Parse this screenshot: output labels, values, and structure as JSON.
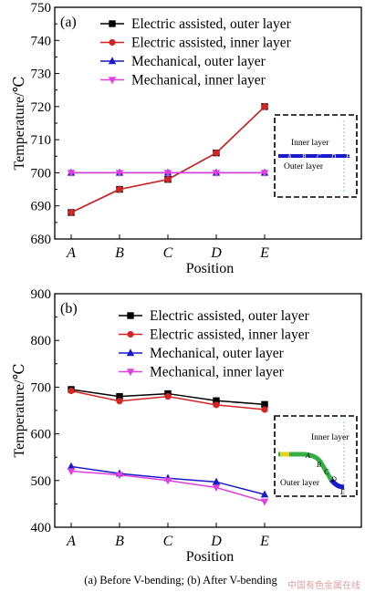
{
  "chart_data": [
    {
      "type": "line",
      "panel_label": "(a)",
      "categories": [
        "A",
        "B",
        "C",
        "D",
        "E"
      ],
      "xlabel": "Position",
      "ylabel": "Temperature/℃",
      "ylim": [
        680,
        750
      ],
      "yticks": [
        680,
        690,
        700,
        710,
        720,
        730,
        740,
        750
      ],
      "legend_position": "top-right",
      "series": [
        {
          "name": "Electric assisted, outer layer",
          "values": [
            688,
            695,
            698,
            706,
            720
          ],
          "color": "#000000",
          "marker": "square"
        },
        {
          "name": "Electric assisted, inner layer",
          "values": [
            688,
            695,
            698,
            706,
            720
          ],
          "color": "#d42424",
          "marker": "circle"
        },
        {
          "name": "Mechanical, outer layer",
          "values": [
            700,
            700,
            700,
            700,
            700
          ],
          "color": "#1a1acc",
          "marker": "triangle-up"
        },
        {
          "name": "Mechanical, inner layer",
          "values": [
            700,
            700,
            700,
            700,
            700
          ],
          "color": "#e040e0",
          "marker": "triangle-down"
        }
      ],
      "inset": {
        "inner_label": "Inner layer",
        "outer_label": "Outer layer",
        "points": [
          "A",
          "B",
          "C",
          "D",
          "E"
        ]
      }
    },
    {
      "type": "line",
      "panel_label": "(b)",
      "categories": [
        "A",
        "B",
        "C",
        "D",
        "E"
      ],
      "xlabel": "Position",
      "ylabel": "Temperature/℃",
      "ylim": [
        400,
        900
      ],
      "yticks": [
        400,
        500,
        600,
        700,
        800,
        900
      ],
      "legend_position": "top-right",
      "series": [
        {
          "name": "Electric assisted, outer layer",
          "values": [
            695,
            680,
            686,
            671,
            663
          ],
          "color": "#000000",
          "marker": "square"
        },
        {
          "name": "Electric assisted, inner layer",
          "values": [
            692,
            670,
            680,
            662,
            652
          ],
          "color": "#d42424",
          "marker": "circle"
        },
        {
          "name": "Mechanical, outer layer",
          "values": [
            530,
            515,
            505,
            497,
            470
          ],
          "color": "#1a1acc",
          "marker": "triangle-up"
        },
        {
          "name": "Mechanical, inner layer",
          "values": [
            520,
            512,
            500,
            485,
            455
          ],
          "color": "#e040e0",
          "marker": "triangle-down"
        }
      ],
      "inset": {
        "inner_label": "Inner layer",
        "outer_label": "Outer layer",
        "points": [
          "A",
          "B",
          "C",
          "D",
          "E"
        ]
      }
    }
  ],
  "caption": "(a)  Before  V-bending;  (b) After V-bending",
  "watermark": "中国有色金属在线"
}
